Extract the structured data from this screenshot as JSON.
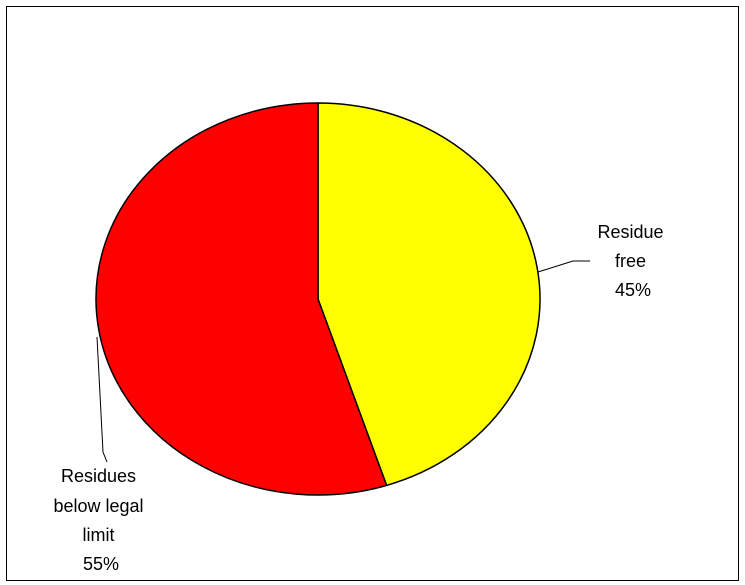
{
  "chart_data": {
    "type": "pie",
    "title": "",
    "start_angle_deg": 0,
    "direction": "clockwise",
    "slices": [
      {
        "label": "Residue free",
        "value": 45,
        "percent_label": "45%",
        "color": "#FFFF00",
        "label_lines": [
          "Residue",
          "free",
          "45%"
        ]
      },
      {
        "label": "Residues below legal limit",
        "value": 55,
        "percent_label": "55%",
        "color": "#FF0000",
        "label_lines": [
          "Residues",
          "below legal",
          "limit",
          "55%"
        ]
      }
    ],
    "slice_border_color": "#000000",
    "legend": "none"
  }
}
